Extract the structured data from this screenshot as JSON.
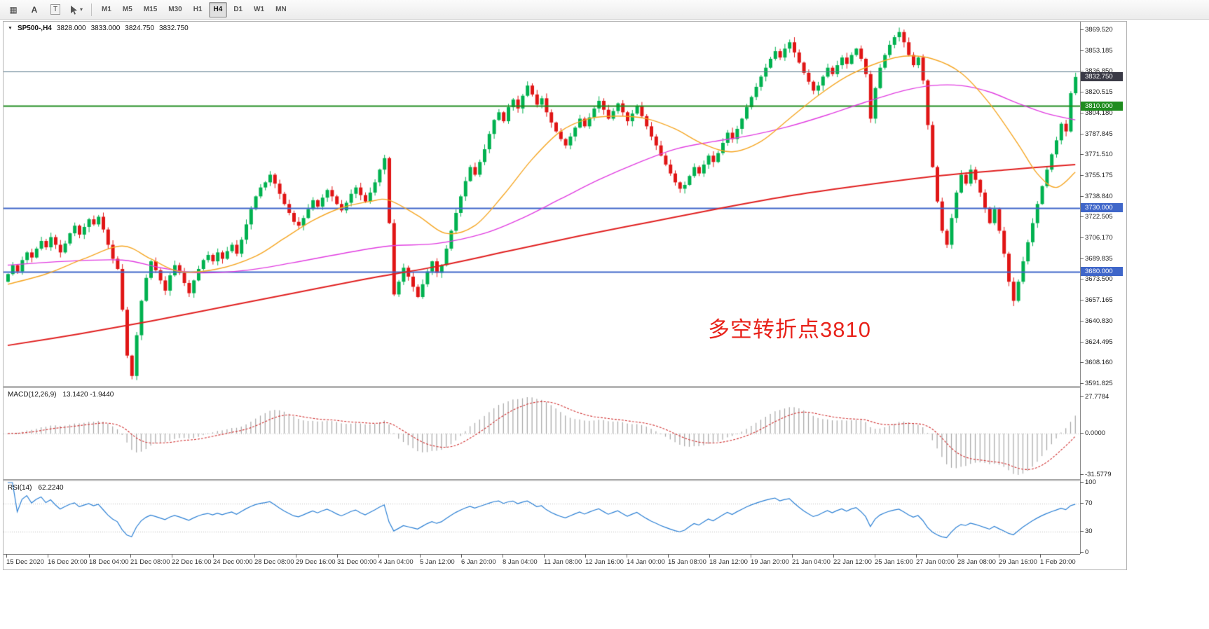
{
  "toolbar": {
    "tools": {
      "tile_icon": "▦",
      "font_label": "A",
      "text_label": "T",
      "cursor_caret": "▾"
    },
    "timeframes": [
      "M1",
      "M5",
      "M15",
      "M30",
      "H1",
      "H4",
      "D1",
      "W1",
      "MN"
    ],
    "active_timeframe": "H4"
  },
  "chart_window": {
    "collapse_icon": "▼",
    "symbol_title": "SP500-,H4",
    "open": "3828.000",
    "high": "3833.000",
    "low": "3824.750",
    "close": "3832.750",
    "annotation": {
      "text": "多空转折点3810",
      "color": "#e8231b"
    }
  },
  "price_axis": {
    "ticks": [
      "3869.520",
      "3853.185",
      "3836.850",
      "3820.515",
      "3804.180",
      "3787.845",
      "3771.510",
      "3755.175",
      "3738.840",
      "3722.505",
      "3706.170",
      "3689.835",
      "3673.500",
      "3657.165",
      "3640.830",
      "3624.495",
      "3608.160",
      "3591.825"
    ],
    "badges": [
      {
        "name": "current-price-badge",
        "label": "3832.750",
        "price": 3832.75,
        "bg": "#3a3a46",
        "fg": "#ffffff"
      },
      {
        "name": "green-level-badge",
        "label": "3810.000",
        "price": 3810,
        "bg": "#1f8c1f",
        "fg": "#ffffff"
      },
      {
        "name": "blue-level-badge-3730",
        "label": "3730.000",
        "price": 3730,
        "bg": "#3f66c9",
        "fg": "#ffffff"
      },
      {
        "name": "blue-level-badge-3680",
        "label": "3680.000",
        "price": 3680,
        "bg": "#3f66c9",
        "fg": "#ffffff"
      }
    ]
  },
  "horizontal_lines": [
    {
      "price": 3836.85,
      "color": "#5d7d8e",
      "width": 1
    },
    {
      "price": 3810,
      "color": "#1f8c1f",
      "width": 2
    },
    {
      "price": 3730,
      "color": "#3f66c9",
      "width": 2
    },
    {
      "price": 3680,
      "color": "#3f66c9",
      "width": 2
    }
  ],
  "time_axis": [
    "15 Dec 2020",
    "16 Dec 20:00",
    "18 Dec 04:00",
    "21 Dec 08:00",
    "22 Dec 16:00",
    "24 Dec 00:00",
    "28 Dec 08:00",
    "29 Dec 16:00",
    "31 Dec 00:00",
    "4 Jan 04:00",
    "5 Jan 12:00",
    "6 Jan 20:00",
    "8 Jan 04:00",
    "11 Jan 08:00",
    "12 Jan 16:00",
    "14 Jan 00:00",
    "15 Jan 08:00",
    "18 Jan 12:00",
    "19 Jan 20:00",
    "21 Jan 04:00",
    "22 Jan 12:00",
    "25 Jan 16:00",
    "27 Jan 00:00",
    "28 Jan 08:00",
    "29 Jan 16:00",
    "1 Feb 20:00"
  ],
  "indicators": {
    "macd": {
      "label": "MACD(12,26,9)",
      "values": "13.1420 -1.9440",
      "params": [
        12,
        26,
        9
      ],
      "axis_labels": [
        "27.7784",
        "0.0000",
        "-31.5779"
      ],
      "histogram_color": "#a6a6a6",
      "signal_color": "#d03030"
    },
    "rsi": {
      "label": "RSI(14)",
      "value": "62.2240",
      "period": 14,
      "axis_labels": [
        "100",
        "70",
        "30",
        "0"
      ],
      "levels": [
        70,
        30
      ],
      "line_color": "#2a7fd4"
    }
  },
  "chart_data": {
    "type": "candlestick",
    "symbol": "SP500-",
    "timeframe": "H4",
    "price_range": [
      3591.825,
      3869.52
    ],
    "first_open": 3672,
    "up_color": "#00b14f",
    "down_color": "#e01515",
    "last_ohlc": {
      "open": 3828.0,
      "high": 3833.0,
      "low": 3824.75,
      "close": 3832.75
    },
    "closes": [
      3678,
      3685,
      3680,
      3689,
      3695,
      3691,
      3698,
      3704,
      3699,
      3707,
      3701,
      3695,
      3702,
      3710,
      3716,
      3709,
      3715,
      3721,
      3717,
      3723,
      3713,
      3701,
      3690,
      3682,
      3650,
      3614,
      3598,
      3630,
      3657,
      3675,
      3688,
      3681,
      3673,
      3665,
      3677,
      3685,
      3679,
      3671,
      3663,
      3673,
      3682,
      3689,
      3693,
      3688,
      3695,
      3690,
      3696,
      3701,
      3694,
      3705,
      3717,
      3729,
      3739,
      3746,
      3750,
      3756,
      3749,
      3741,
      3733,
      3726,
      3719,
      3716,
      3722,
      3729,
      3736,
      3731,
      3738,
      3744,
      3739,
      3733,
      3728,
      3734,
      3741,
      3746,
      3740,
      3735,
      3742,
      3750,
      3760,
      3769,
      3718,
      3662,
      3672,
      3683,
      3676,
      3668,
      3660,
      3670,
      3680,
      3688,
      3679,
      3685,
      3698,
      3712,
      3726,
      3739,
      3751,
      3762,
      3756,
      3766,
      3776,
      3788,
      3799,
      3805,
      3798,
      3809,
      3815,
      3808,
      3818,
      3826,
      3819,
      3811,
      3816,
      3805,
      3797,
      3790,
      3784,
      3779,
      3786,
      3793,
      3800,
      3794,
      3801,
      3808,
      3814,
      3807,
      3800,
      3806,
      3812,
      3805,
      3798,
      3804,
      3810,
      3802,
      3794,
      3786,
      3779,
      3771,
      3764,
      3757,
      3750,
      3745,
      3748,
      3755,
      3762,
      3757,
      3764,
      3771,
      3766,
      3773,
      3781,
      3789,
      3784,
      3792,
      3800,
      3809,
      3817,
      3825,
      3833,
      3840,
      3847,
      3853,
      3848,
      3855,
      3860,
      3852,
      3844,
      3836,
      3829,
      3822,
      3826,
      3833,
      3840,
      3835,
      3842,
      3848,
      3843,
      3850,
      3855,
      3847,
      3835,
      3800,
      3824,
      3840,
      3850,
      3858,
      3864,
      3868,
      3860,
      3850,
      3842,
      3848,
      3830,
      3795,
      3762,
      3735,
      3712,
      3701,
      3722,
      3742,
      3756,
      3749,
      3760,
      3752,
      3742,
      3730,
      3718,
      3729,
      3712,
      3694,
      3672,
      3657,
      3672,
      3688,
      3703,
      3718,
      3733,
      3747,
      3760,
      3772,
      3783,
      3796,
      3790,
      3820,
      3832.75
    ],
    "moving_averages": [
      {
        "name": "slow-ma",
        "color": "#e02020",
        "width": 2,
        "points": [
          [
            0,
            3622
          ],
          [
            15,
            3631
          ],
          [
            30,
            3641
          ],
          [
            45,
            3652
          ],
          [
            60,
            3663
          ],
          [
            75,
            3674
          ],
          [
            90,
            3684
          ],
          [
            105,
            3696
          ],
          [
            120,
            3708
          ],
          [
            135,
            3719
          ],
          [
            150,
            3730
          ],
          [
            165,
            3740
          ],
          [
            180,
            3748
          ],
          [
            195,
            3755
          ],
          [
            210,
            3760
          ],
          [
            224,
            3764
          ]
        ]
      },
      {
        "name": "medium-ma",
        "color": "#e03ce0",
        "width": 1.4,
        "points": [
          [
            0,
            3685
          ],
          [
            12,
            3688
          ],
          [
            24,
            3689
          ],
          [
            32,
            3683
          ],
          [
            40,
            3679
          ],
          [
            50,
            3681
          ],
          [
            60,
            3687
          ],
          [
            70,
            3694
          ],
          [
            80,
            3700
          ],
          [
            90,
            3702
          ],
          [
            100,
            3710
          ],
          [
            108,
            3722
          ],
          [
            116,
            3737
          ],
          [
            124,
            3752
          ],
          [
            132,
            3765
          ],
          [
            140,
            3776
          ],
          [
            148,
            3782
          ],
          [
            156,
            3787
          ],
          [
            164,
            3794
          ],
          [
            172,
            3803
          ],
          [
            180,
            3813
          ],
          [
            188,
            3822
          ],
          [
            194,
            3826
          ],
          [
            200,
            3826
          ],
          [
            206,
            3821
          ],
          [
            212,
            3812
          ],
          [
            218,
            3804
          ],
          [
            224,
            3799
          ]
        ]
      },
      {
        "name": "fast-ma",
        "color": "#f5a623",
        "width": 1.4,
        "points": [
          [
            0,
            3670
          ],
          [
            8,
            3678
          ],
          [
            16,
            3690
          ],
          [
            24,
            3700
          ],
          [
            30,
            3690
          ],
          [
            36,
            3680
          ],
          [
            44,
            3682
          ],
          [
            52,
            3692
          ],
          [
            58,
            3706
          ],
          [
            64,
            3720
          ],
          [
            70,
            3730
          ],
          [
            76,
            3735
          ],
          [
            80,
            3736
          ],
          [
            86,
            3724
          ],
          [
            92,
            3710
          ],
          [
            98,
            3716
          ],
          [
            104,
            3740
          ],
          [
            110,
            3768
          ],
          [
            116,
            3790
          ],
          [
            122,
            3800
          ],
          [
            128,
            3802
          ],
          [
            134,
            3800
          ],
          [
            140,
            3792
          ],
          [
            146,
            3780
          ],
          [
            152,
            3774
          ],
          [
            158,
            3782
          ],
          [
            164,
            3800
          ],
          [
            170,
            3818
          ],
          [
            176,
            3833
          ],
          [
            182,
            3843
          ],
          [
            188,
            3849
          ],
          [
            194,
            3847
          ],
          [
            200,
            3836
          ],
          [
            206,
            3812
          ],
          [
            212,
            3780
          ],
          [
            216,
            3757
          ],
          [
            220,
            3746
          ],
          [
            224,
            3758
          ]
        ]
      }
    ]
  }
}
